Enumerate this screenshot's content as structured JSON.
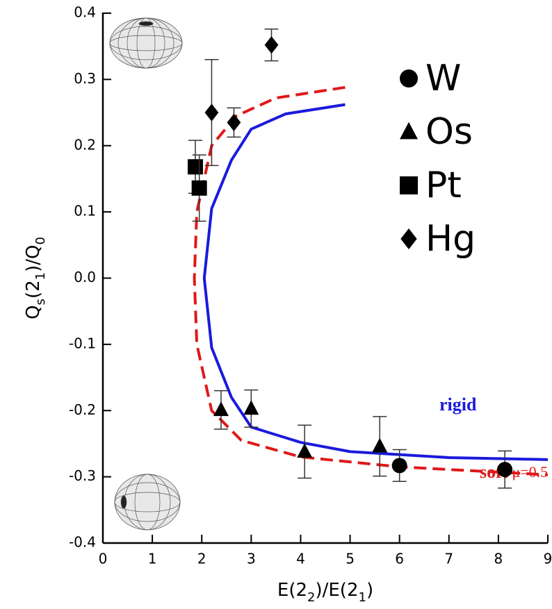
{
  "chart_data": {
    "type": "scatter",
    "xlabel": [
      "E(2",
      "2",
      ")/E(2",
      "1",
      ")"
    ],
    "ylabel": [
      "Q",
      "s",
      "(2",
      "1",
      ")/Q",
      "0"
    ],
    "xlim": [
      0,
      9
    ],
    "xticks": [
      0,
      1,
      2,
      3,
      4,
      5,
      6,
      7,
      8,
      9
    ],
    "ylim": [
      -0.4,
      0.4
    ],
    "yticks": [
      -0.4,
      -0.3,
      -0.2,
      -0.1,
      {
        "value": 0,
        "label": "0.0"
      },
      0.1,
      0.2,
      0.3,
      0.4
    ],
    "series": [
      {
        "name": "W",
        "marker": "circle",
        "color": "#000000",
        "x": [
          6.0,
          8.13
        ],
        "values": [
          -0.283,
          -0.289
        ],
        "errors": [
          0.024,
          0.028
        ]
      },
      {
        "name": "Os",
        "marker": "triangle",
        "color": "#000000",
        "x": [
          2.39,
          3.0,
          4.08,
          5.6
        ],
        "values": [
          -0.199,
          -0.197,
          -0.262,
          -0.254
        ],
        "errors": [
          0.029,
          0.028,
          0.04,
          0.045
        ]
      },
      {
        "name": "Pt",
        "marker": "square",
        "color": "#000000",
        "x": [
          1.87,
          1.95
        ],
        "values": [
          0.168,
          0.136
        ],
        "errors": [
          0.04,
          0.05
        ]
      },
      {
        "name": "Hg",
        "marker": "diamond",
        "color": "#000000",
        "x": [
          2.2,
          2.65,
          3.41
        ],
        "values": [
          0.25,
          0.235,
          0.352
        ],
        "errors": [
          0.08,
          0.022,
          0.024
        ]
      }
    ],
    "curves": [
      {
        "name": "rigid",
        "color": "#1a1adc",
        "dashed": false,
        "x": [
          4.9,
          3.7,
          3.0,
          2.6,
          2.2,
          2.05,
          2.2,
          2.6,
          3.0,
          4.0,
          5.0,
          7.0,
          9.0
        ],
        "values": [
          0.262,
          0.248,
          0.225,
          0.178,
          0.105,
          0.0,
          -0.105,
          -0.18,
          -0.225,
          -0.248,
          -0.262,
          -0.271,
          -0.274
        ]
      },
      {
        "name": "soft",
        "extra": "μ=0.5",
        "color": "#e01818",
        "dashed": true,
        "x": [
          4.9,
          3.5,
          2.7,
          2.2,
          1.9,
          1.85,
          1.9,
          2.2,
          2.8,
          4.0,
          6.0,
          9.0
        ],
        "values": [
          0.288,
          0.272,
          0.245,
          0.2,
          0.1,
          0.0,
          -0.1,
          -0.2,
          -0.245,
          -0.27,
          -0.285,
          -0.297
        ]
      }
    ]
  }
}
